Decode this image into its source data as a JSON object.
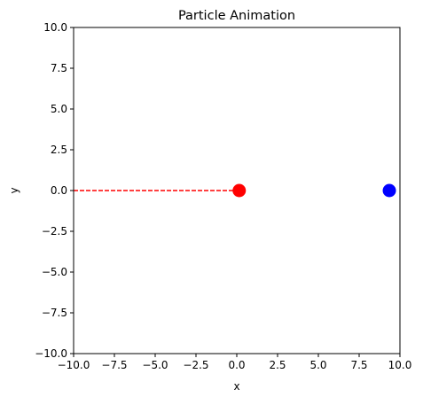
{
  "chart_data": {
    "type": "scatter",
    "title": "Particle Animation",
    "xlabel": "x",
    "ylabel": "y",
    "xlim": [
      -10,
      10
    ],
    "ylim": [
      -10,
      10
    ],
    "xticks": [
      "−10.0",
      "−7.5",
      "−5.0",
      "−2.5",
      "0.0",
      "2.5",
      "5.0",
      "7.5",
      "10.0"
    ],
    "yticks": [
      "−10.0",
      "−7.5",
      "−5.0",
      "−2.5",
      "0.0",
      "2.5",
      "5.0",
      "7.5",
      "10.0"
    ],
    "grid": false,
    "series": [
      {
        "kind": "line",
        "style": "dashed",
        "color": "#ff0000",
        "x": [
          -10,
          -0.15
        ],
        "y": [
          0,
          0
        ]
      },
      {
        "kind": "point",
        "color": "#ff0000",
        "x": [
          0.15
        ],
        "y": [
          0
        ]
      },
      {
        "kind": "point",
        "color": "#0000ff",
        "x": [
          9.35
        ],
        "y": [
          0
        ]
      }
    ]
  }
}
